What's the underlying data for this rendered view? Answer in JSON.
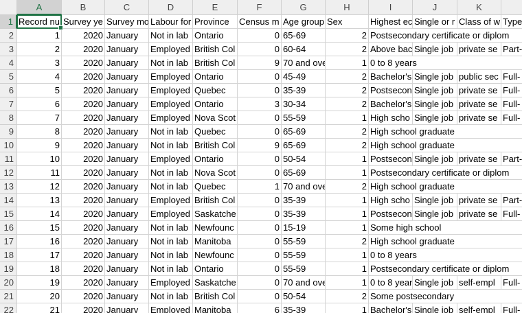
{
  "columns": [
    "A",
    "B",
    "C",
    "D",
    "E",
    "F",
    "G",
    "H",
    "I",
    "J",
    "K",
    "L"
  ],
  "rows": [
    {
      "number": 1,
      "cells": [
        "Record nu",
        "Survey ye",
        "Survey mo",
        "Labour for",
        "Province",
        "Census m",
        "Age group",
        "Sex",
        "Highest ec",
        "Single or r",
        "Class of w",
        "Type"
      ]
    },
    {
      "number": 2,
      "cells": [
        1,
        2020,
        "January",
        "Not in lab",
        "Ontario",
        0,
        "65-69",
        2,
        "Postsecondary certificate or diplom"
      ]
    },
    {
      "number": 3,
      "cells": [
        2,
        2020,
        "January",
        "Employed",
        "British Col",
        0,
        "60-64",
        2,
        "Above bac",
        "Single job",
        "private se",
        "Part-"
      ]
    },
    {
      "number": 4,
      "cells": [
        3,
        2020,
        "January",
        "Not in lab",
        "British Col",
        9,
        "70 and ove",
        1,
        "0 to 8 years"
      ]
    },
    {
      "number": 5,
      "cells": [
        4,
        2020,
        "January",
        "Employed",
        "Ontario",
        0,
        "45-49",
        2,
        "Bachelor's",
        "Single job",
        "public sec",
        "Full-"
      ]
    },
    {
      "number": 6,
      "cells": [
        5,
        2020,
        "January",
        "Employed",
        "Quebec",
        0,
        "35-39",
        2,
        "Postsecon",
        "Single job",
        "private se",
        "Full-"
      ]
    },
    {
      "number": 7,
      "cells": [
        6,
        2020,
        "January",
        "Employed",
        "Ontario",
        3,
        "30-34",
        2,
        "Bachelor's",
        "Single job",
        "private se",
        "Full-"
      ]
    },
    {
      "number": 8,
      "cells": [
        7,
        2020,
        "January",
        "Employed",
        "Nova Scot",
        0,
        "55-59",
        1,
        "High scho",
        "Single job",
        "private se",
        "Full-"
      ]
    },
    {
      "number": 9,
      "cells": [
        8,
        2020,
        "January",
        "Not in lab",
        "Quebec",
        0,
        "65-69",
        2,
        "High school graduate"
      ]
    },
    {
      "number": 10,
      "cells": [
        9,
        2020,
        "January",
        "Not in lab",
        "British Col",
        9,
        "65-69",
        2,
        "High school graduate"
      ]
    },
    {
      "number": 11,
      "cells": [
        10,
        2020,
        "January",
        "Employed",
        "Ontario",
        0,
        "50-54",
        1,
        "Postsecon",
        "Single job",
        "private se",
        "Part-"
      ]
    },
    {
      "number": 12,
      "cells": [
        11,
        2020,
        "January",
        "Not in lab",
        "Nova Scot",
        0,
        "65-69",
        1,
        "Postsecondary certificate or diplom"
      ]
    },
    {
      "number": 13,
      "cells": [
        12,
        2020,
        "January",
        "Not in lab",
        "Quebec",
        1,
        "70 and ove",
        2,
        "High school graduate"
      ]
    },
    {
      "number": 14,
      "cells": [
        13,
        2020,
        "January",
        "Employed",
        "British Col",
        0,
        "35-39",
        1,
        "High scho",
        "Single job",
        "private se",
        "Part-"
      ]
    },
    {
      "number": 15,
      "cells": [
        14,
        2020,
        "January",
        "Employed",
        "Saskatche",
        0,
        "35-39",
        1,
        "Postsecon",
        "Single job",
        "private se",
        "Full-"
      ]
    },
    {
      "number": 16,
      "cells": [
        15,
        2020,
        "January",
        "Not in lab",
        "Newfounc",
        0,
        "15-19",
        1,
        "Some high school"
      ]
    },
    {
      "number": 17,
      "cells": [
        16,
        2020,
        "January",
        "Not in lab",
        "Manitoba",
        0,
        "55-59",
        2,
        "High school graduate"
      ]
    },
    {
      "number": 18,
      "cells": [
        17,
        2020,
        "January",
        "Not in lab",
        "Newfounc",
        0,
        "55-59",
        1,
        "0 to 8 years"
      ]
    },
    {
      "number": 19,
      "cells": [
        18,
        2020,
        "January",
        "Not in lab",
        "Ontario",
        0,
        "55-59",
        1,
        "Postsecondary certificate or diplom"
      ]
    },
    {
      "number": 20,
      "cells": [
        19,
        2020,
        "January",
        "Employed",
        "Saskatche",
        0,
        "70 and ove",
        1,
        "0 to 8 year",
        "Single job",
        "self-empl",
        "Full-"
      ]
    },
    {
      "number": 21,
      "cells": [
        20,
        2020,
        "January",
        "Not in lab",
        "British Col",
        0,
        "50-54",
        2,
        "Some postsecondary"
      ]
    },
    {
      "number": 22,
      "cells": [
        21,
        2020,
        "January",
        "Employed",
        "Manitoba",
        6,
        "35-39",
        1,
        "Bachelor's",
        "Single job",
        "self-empl",
        "Full-"
      ]
    }
  ]
}
